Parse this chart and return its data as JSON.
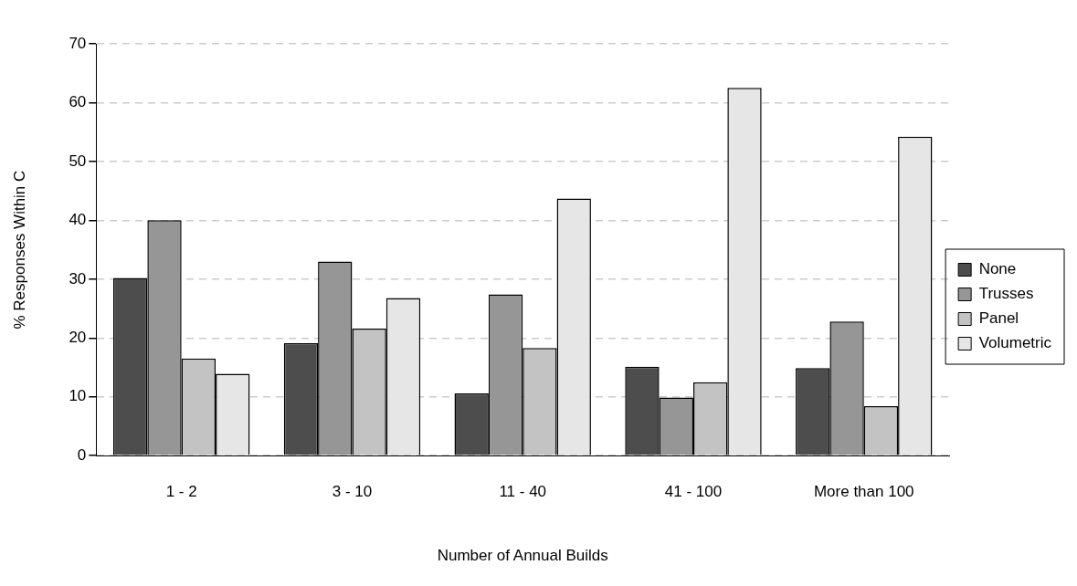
{
  "chart_data": {
    "type": "bar",
    "xlabel": "Number of Annual Builds",
    "ylabel": "% Responses Within C",
    "categories": [
      "1 - 2",
      "3 - 10",
      "11 - 40",
      "41 - 100",
      "More than 100"
    ],
    "series": [
      {
        "name": "None",
        "color": "#4d4d4d",
        "values": [
          30.2,
          19.1,
          10.6,
          15.1,
          14.9
        ]
      },
      {
        "name": "Trusses",
        "color": "#969696",
        "values": [
          40,
          33,
          27.4,
          9.9,
          22.8
        ]
      },
      {
        "name": "Panel",
        "color": "#c3c3c3",
        "values": [
          16.5,
          21.6,
          18.3,
          12.5,
          8.4
        ]
      },
      {
        "name": "Volumetric",
        "color": "#e6e6e6",
        "values": [
          13.9,
          26.8,
          43.7,
          62.5,
          54.2
        ]
      }
    ],
    "ylim": [
      0,
      70
    ],
    "yticks": [
      0,
      10,
      20,
      30,
      40,
      50,
      60,
      70
    ],
    "grid": "y",
    "legend": "right"
  }
}
